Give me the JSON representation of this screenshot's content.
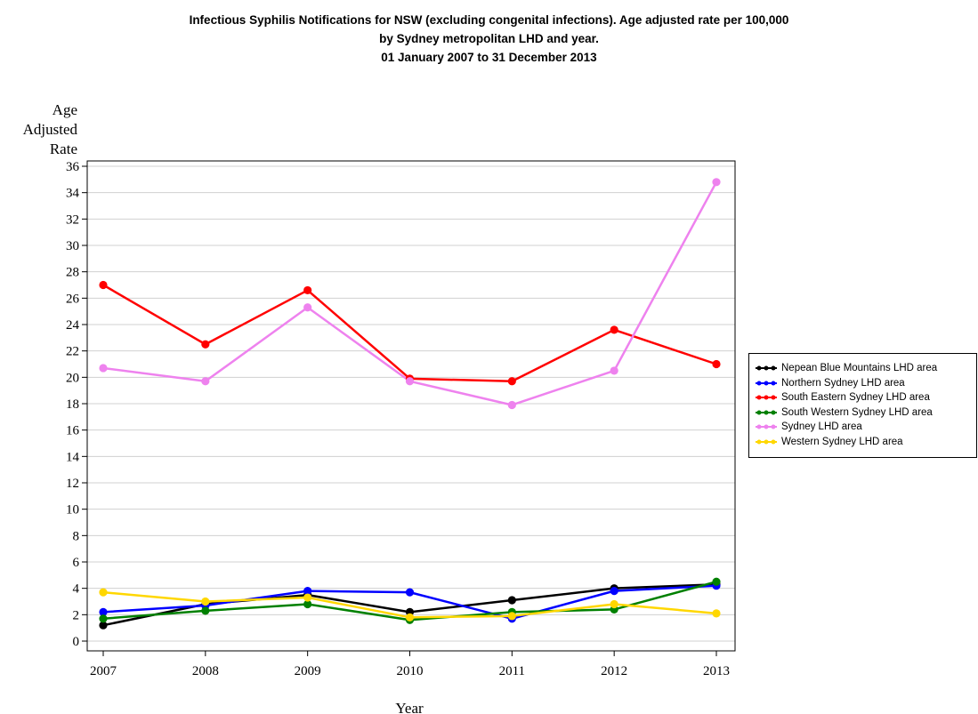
{
  "chart_data": {
    "type": "line",
    "title_lines": [
      "Infectious Syphilis Notifications for NSW (excluding congenital infections). Age adjusted rate per 100,000",
      "by Sydney metropolitan LHD and year.",
      "01 January 2007 to 31 December 2013"
    ],
    "ylabel_lines": [
      "Age",
      "Adjusted",
      "Rate"
    ],
    "xlabel": "Year",
    "x": [
      2007,
      2008,
      2009,
      2010,
      2011,
      2012,
      2013
    ],
    "ylim": [
      0,
      36
    ],
    "yticks": [
      0,
      2,
      4,
      6,
      8,
      10,
      12,
      14,
      16,
      18,
      20,
      22,
      24,
      26,
      28,
      30,
      32,
      34,
      36
    ],
    "grid": "horizontal",
    "legend_position": "right",
    "series": [
      {
        "name": "Nepean Blue Mountains LHD area",
        "color": "#000000",
        "values": [
          1.2,
          2.8,
          3.5,
          2.2,
          3.1,
          4.0,
          4.3
        ]
      },
      {
        "name": "Northern Sydney LHD area",
        "color": "#0000ff",
        "values": [
          2.2,
          2.7,
          3.8,
          3.7,
          1.7,
          3.8,
          4.2
        ]
      },
      {
        "name": "South Eastern Sydney LHD area",
        "color": "#ff0000",
        "values": [
          27.0,
          22.5,
          26.6,
          19.9,
          19.7,
          23.6,
          21.0
        ]
      },
      {
        "name": "South Western Sydney LHD area",
        "color": "#008000",
        "values": [
          1.7,
          2.3,
          2.8,
          1.6,
          2.2,
          2.4,
          4.5
        ]
      },
      {
        "name": "Sydney LHD area",
        "color": "#ee82ee",
        "values": [
          20.7,
          19.7,
          25.3,
          19.7,
          17.9,
          20.5,
          34.8
        ]
      },
      {
        "name": "Western Sydney LHD area",
        "color": "#ffd700",
        "values": [
          3.7,
          3.0,
          3.3,
          1.8,
          1.9,
          2.8,
          2.1
        ]
      }
    ]
  }
}
